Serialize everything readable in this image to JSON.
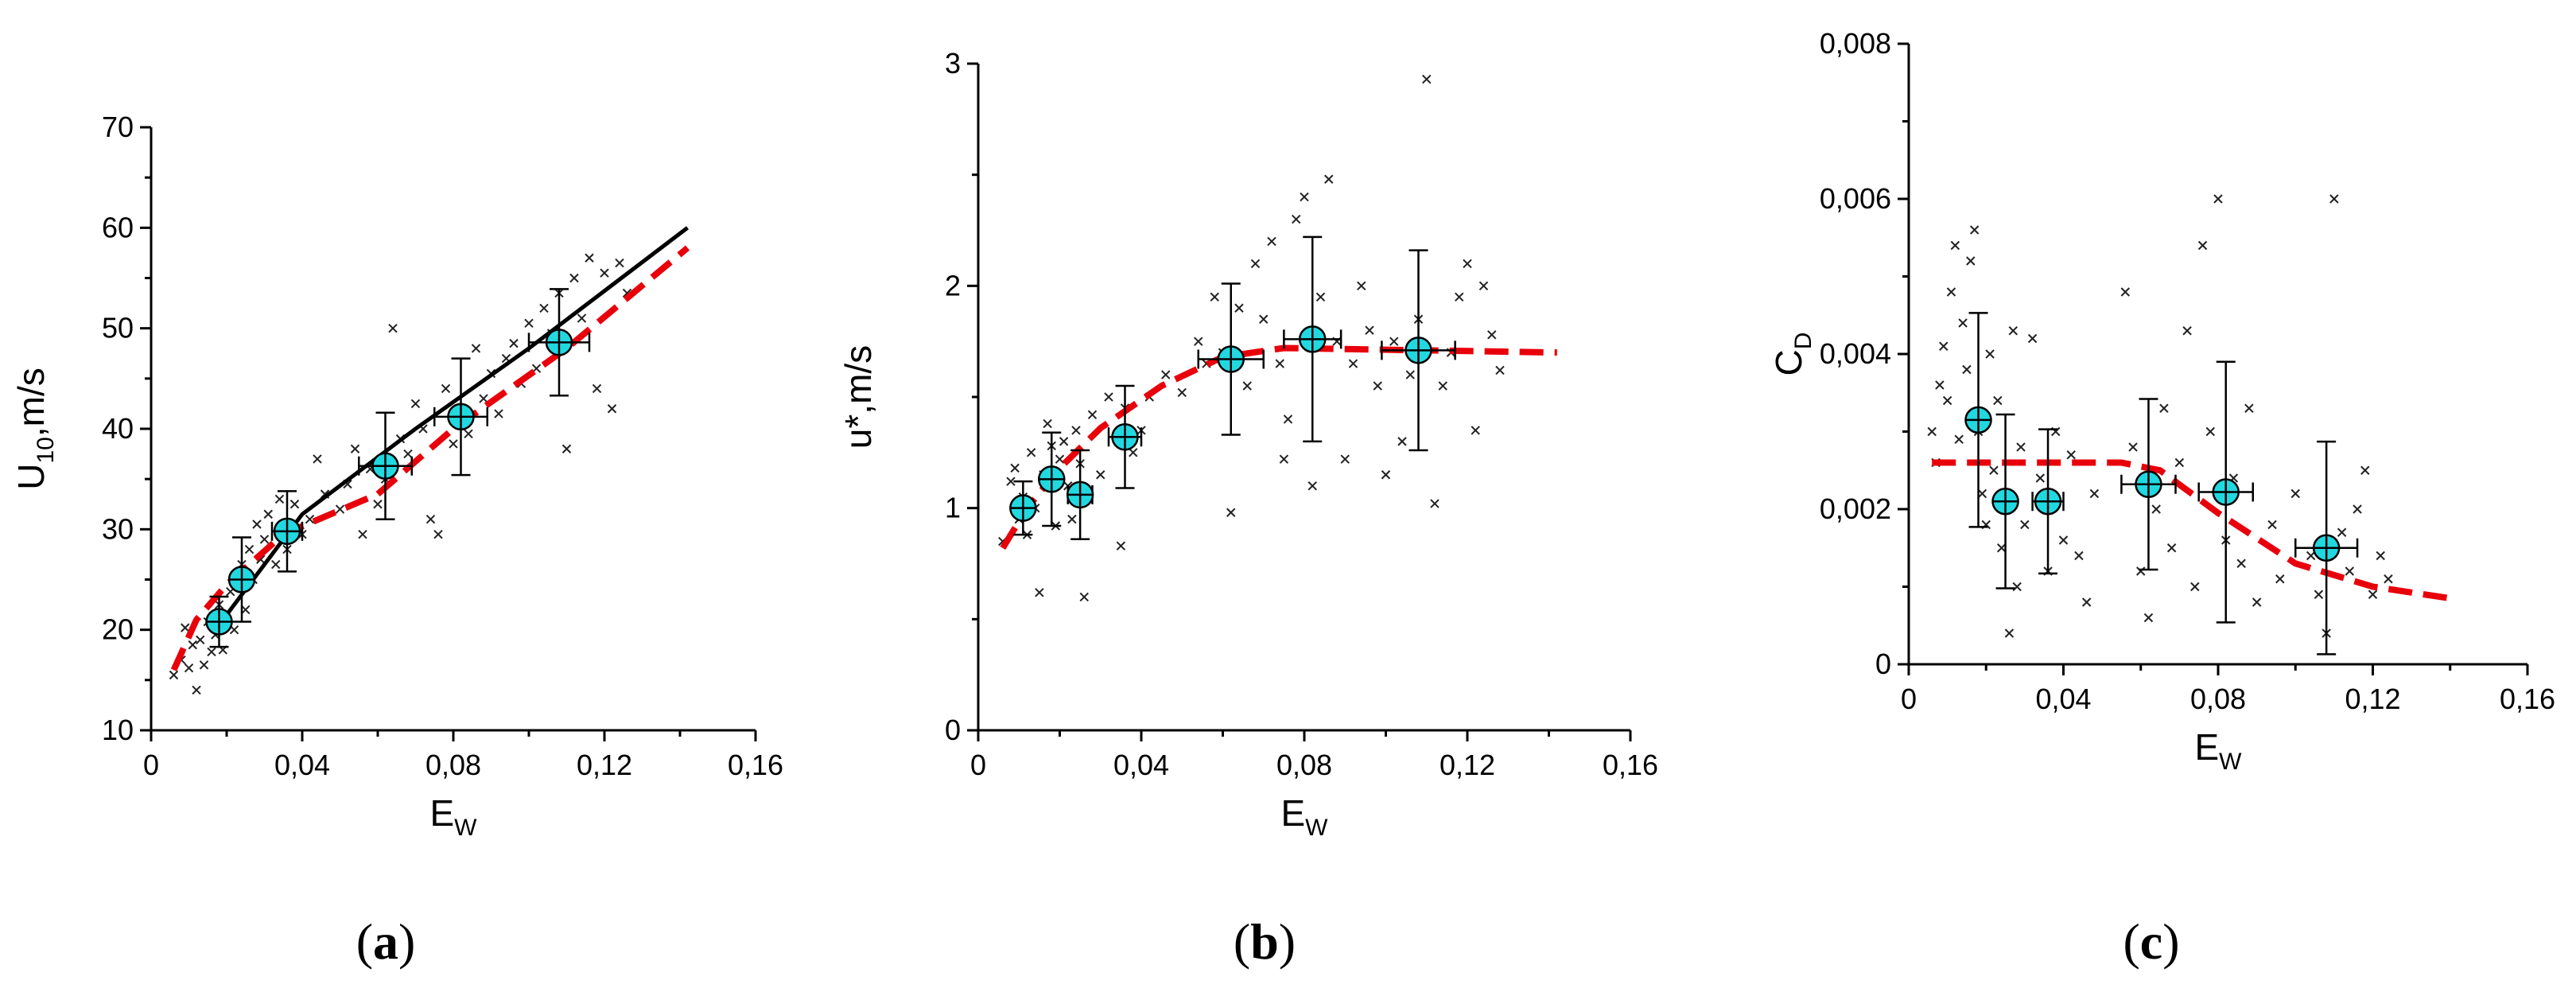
{
  "chart_data": [
    {
      "id": "a",
      "type": "scatter",
      "panel_label": "a",
      "xlabel": "E",
      "xlabel_sub": "W",
      "ylabel": "U",
      "ylabel_sub": "10",
      "ylabel_suffix": ",m/s",
      "xlim": [
        0,
        0.16
      ],
      "ylim": [
        10,
        70
      ],
      "xticks": [
        0,
        0.04,
        0.08,
        0.12,
        0.16
      ],
      "xtick_labels": [
        "0",
        "0,04",
        "0,08",
        "0,12",
        "0,16"
      ],
      "yticks": [
        10,
        20,
        30,
        40,
        50,
        60,
        70
      ],
      "ytick_labels": [
        "10",
        "20",
        "30",
        "40",
        "50",
        "60",
        "70"
      ],
      "scatter": [
        [
          0.006,
          15.5
        ],
        [
          0.008,
          17.0
        ],
        [
          0.009,
          20.2
        ],
        [
          0.01,
          16.2
        ],
        [
          0.011,
          18.5
        ],
        [
          0.012,
          14.0
        ],
        [
          0.013,
          19.0
        ],
        [
          0.014,
          16.5
        ],
        [
          0.015,
          20.8
        ],
        [
          0.016,
          17.8
        ],
        [
          0.017,
          19.5
        ],
        [
          0.018,
          22.5
        ],
        [
          0.019,
          18.0
        ],
        [
          0.02,
          21.5
        ],
        [
          0.021,
          23.8
        ],
        [
          0.022,
          20.0
        ],
        [
          0.023,
          24.5
        ],
        [
          0.024,
          26.5
        ],
        [
          0.025,
          22.0
        ],
        [
          0.026,
          28.0
        ],
        [
          0.027,
          25.0
        ],
        [
          0.028,
          30.5
        ],
        [
          0.029,
          27.0
        ],
        [
          0.03,
          29.0
        ],
        [
          0.031,
          31.5
        ],
        [
          0.033,
          26.5
        ],
        [
          0.034,
          33.0
        ],
        [
          0.035,
          30.0
        ],
        [
          0.036,
          28.0
        ],
        [
          0.038,
          32.5
        ],
        [
          0.04,
          29.5
        ],
        [
          0.042,
          31.0
        ],
        [
          0.044,
          37.0
        ],
        [
          0.046,
          33.5
        ],
        [
          0.05,
          32.0
        ],
        [
          0.052,
          34.5
        ],
        [
          0.054,
          38.0
        ],
        [
          0.056,
          29.5
        ],
        [
          0.058,
          36.0
        ],
        [
          0.06,
          32.5
        ],
        [
          0.062,
          35.0
        ],
        [
          0.064,
          50.0
        ],
        [
          0.066,
          39.0
        ],
        [
          0.068,
          37.5
        ],
        [
          0.07,
          42.5
        ],
        [
          0.072,
          40.0
        ],
        [
          0.074,
          31.0
        ],
        [
          0.076,
          29.5
        ],
        [
          0.078,
          44.0
        ],
        [
          0.08,
          38.5
        ],
        [
          0.082,
          42.0
        ],
        [
          0.084,
          39.5
        ],
        [
          0.086,
          48.0
        ],
        [
          0.088,
          43.0
        ],
        [
          0.09,
          45.5
        ],
        [
          0.092,
          41.5
        ],
        [
          0.094,
          47.0
        ],
        [
          0.096,
          48.5
        ],
        [
          0.098,
          44.5
        ],
        [
          0.1,
          50.5
        ],
        [
          0.102,
          46.0
        ],
        [
          0.104,
          52.0
        ],
        [
          0.106,
          49.5
        ],
        [
          0.108,
          53.5
        ],
        [
          0.11,
          38.0
        ],
        [
          0.112,
          55.0
        ],
        [
          0.114,
          51.0
        ],
        [
          0.116,
          57.0
        ],
        [
          0.118,
          44.0
        ],
        [
          0.12,
          55.5
        ],
        [
          0.122,
          42.0
        ],
        [
          0.124,
          56.5
        ],
        [
          0.126,
          53.5
        ]
      ],
      "means": [
        {
          "x": 0.018,
          "y": 20.8,
          "xerr": 0.002,
          "yerr": 2.5
        },
        {
          "x": 0.024,
          "y": 25.0,
          "xerr": 0.002,
          "yerr": 4.2
        },
        {
          "x": 0.036,
          "y": 29.8,
          "xerr": 0.004,
          "yerr": 4.0
        },
        {
          "x": 0.062,
          "y": 36.3,
          "xerr": 0.007,
          "yerr": 5.3
        },
        {
          "x": 0.082,
          "y": 41.2,
          "xerr": 0.007,
          "yerr": 5.8
        },
        {
          "x": 0.108,
          "y": 48.6,
          "xerr": 0.008,
          "yerr": 5.3
        }
      ],
      "fit_black": [
        [
          0.018,
          20.5
        ],
        [
          0.04,
          31.5
        ],
        [
          0.07,
          40.0
        ],
        [
          0.1,
          48.0
        ],
        [
          0.142,
          60.0
        ]
      ],
      "fit_red": [
        [
          0.006,
          16.0
        ],
        [
          0.012,
          21.0
        ],
        [
          0.02,
          24.5
        ],
        [
          0.035,
          29.5
        ],
        [
          0.06,
          33.5
        ],
        [
          0.08,
          40.0
        ],
        [
          0.11,
          48.0
        ],
        [
          0.142,
          58.0
        ]
      ]
    },
    {
      "id": "b",
      "type": "scatter",
      "panel_label": "b",
      "xlabel": "E",
      "xlabel_sub": "W",
      "ylabel": "u",
      "ylabel_sub": "",
      "ylabel_suffix": "*,m/s",
      "xlim": [
        0,
        0.16
      ],
      "ylim": [
        0,
        3
      ],
      "xticks": [
        0,
        0.04,
        0.08,
        0.12,
        0.16
      ],
      "xtick_labels": [
        "0",
        "0,04",
        "0,08",
        "0,12",
        "0,16"
      ],
      "yticks": [
        0,
        1,
        2,
        3
      ],
      "ytick_labels": [
        "0",
        "1",
        "2",
        "3"
      ],
      "scatter": [
        [
          0.006,
          0.85
        ],
        [
          0.008,
          1.12
        ],
        [
          0.009,
          1.18
        ],
        [
          0.01,
          0.95
        ],
        [
          0.011,
          1.05
        ],
        [
          0.012,
          0.88
        ],
        [
          0.013,
          1.25
        ],
        [
          0.014,
          1.0
        ],
        [
          0.015,
          0.62
        ],
        [
          0.016,
          1.15
        ],
        [
          0.017,
          1.38
        ],
        [
          0.018,
          1.28
        ],
        [
          0.019,
          0.92
        ],
        [
          0.02,
          1.22
        ],
        [
          0.021,
          1.3
        ],
        [
          0.022,
          1.1
        ],
        [
          0.023,
          0.95
        ],
        [
          0.024,
          1.35
        ],
        [
          0.025,
          1.2
        ],
        [
          0.026,
          0.6
        ],
        [
          0.027,
          1.05
        ],
        [
          0.028,
          1.42
        ],
        [
          0.03,
          1.15
        ],
        [
          0.032,
          1.5
        ],
        [
          0.034,
          1.32
        ],
        [
          0.035,
          0.83
        ],
        [
          0.036,
          1.45
        ],
        [
          0.038,
          1.25
        ],
        [
          0.04,
          1.35
        ],
        [
          0.042,
          1.5
        ],
        [
          0.046,
          1.6
        ],
        [
          0.05,
          1.52
        ],
        [
          0.054,
          1.75
        ],
        [
          0.056,
          1.65
        ],
        [
          0.058,
          1.95
        ],
        [
          0.06,
          1.7
        ],
        [
          0.062,
          0.98
        ],
        [
          0.064,
          1.9
        ],
        [
          0.066,
          1.55
        ],
        [
          0.068,
          2.1
        ],
        [
          0.07,
          1.85
        ],
        [
          0.072,
          2.2
        ],
        [
          0.074,
          1.65
        ],
        [
          0.075,
          1.22
        ],
        [
          0.076,
          1.4
        ],
        [
          0.078,
          2.3
        ],
        [
          0.08,
          2.4
        ],
        [
          0.082,
          1.1
        ],
        [
          0.084,
          1.95
        ],
        [
          0.086,
          2.48
        ],
        [
          0.088,
          1.75
        ],
        [
          0.09,
          1.22
        ],
        [
          0.092,
          1.65
        ],
        [
          0.094,
          2.0
        ],
        [
          0.096,
          1.8
        ],
        [
          0.098,
          1.55
        ],
        [
          0.1,
          1.15
        ],
        [
          0.102,
          1.75
        ],
        [
          0.104,
          1.3
        ],
        [
          0.106,
          1.6
        ],
        [
          0.108,
          1.85
        ],
        [
          0.11,
          2.93
        ],
        [
          0.112,
          1.02
        ],
        [
          0.114,
          1.55
        ],
        [
          0.116,
          1.7
        ],
        [
          0.118,
          1.95
        ],
        [
          0.12,
          2.1
        ],
        [
          0.122,
          1.35
        ],
        [
          0.124,
          2.0
        ],
        [
          0.126,
          1.78
        ],
        [
          0.128,
          1.62
        ]
      ],
      "means": [
        {
          "x": 0.011,
          "y": 1.0,
          "xerr": 0.002,
          "yerr": 0.12
        },
        {
          "x": 0.018,
          "y": 1.13,
          "xerr": 0.002,
          "yerr": 0.21
        },
        {
          "x": 0.025,
          "y": 1.06,
          "xerr": 0.003,
          "yerr": 0.2
        },
        {
          "x": 0.036,
          "y": 1.32,
          "xerr": 0.004,
          "yerr": 0.23
        },
        {
          "x": 0.062,
          "y": 1.67,
          "xerr": 0.008,
          "yerr": 0.34
        },
        {
          "x": 0.082,
          "y": 1.76,
          "xerr": 0.007,
          "yerr": 0.46
        },
        {
          "x": 0.108,
          "y": 1.71,
          "xerr": 0.009,
          "yerr": 0.45
        }
      ],
      "fit_red": [
        [
          0.006,
          0.82
        ],
        [
          0.012,
          1.0
        ],
        [
          0.02,
          1.18
        ],
        [
          0.03,
          1.36
        ],
        [
          0.045,
          1.55
        ],
        [
          0.06,
          1.68
        ],
        [
          0.075,
          1.72
        ],
        [
          0.142,
          1.7
        ]
      ]
    },
    {
      "id": "c",
      "type": "scatter",
      "panel_label": "c",
      "xlabel": "E",
      "xlabel_sub": "W",
      "ylabel": "C",
      "ylabel_sub": "D",
      "ylabel_suffix": "",
      "xlim": [
        0,
        0.16
      ],
      "ylim": [
        0,
        0.008
      ],
      "xticks": [
        0,
        0.04,
        0.08,
        0.12,
        0.16
      ],
      "xtick_labels": [
        "0",
        "0,04",
        "0,08",
        "0,12",
        "0,16"
      ],
      "yticks": [
        0,
        0.002,
        0.004,
        0.006,
        0.008
      ],
      "ytick_labels": [
        "0",
        "0,002",
        "0,004",
        "0,006",
        "0,008"
      ],
      "scatter": [
        [
          0.006,
          0.003
        ],
        [
          0.007,
          0.0026
        ],
        [
          0.008,
          0.0036
        ],
        [
          0.009,
          0.0041
        ],
        [
          0.01,
          0.0034
        ],
        [
          0.011,
          0.0048
        ],
        [
          0.012,
          0.0054
        ],
        [
          0.013,
          0.0029
        ],
        [
          0.014,
          0.0044
        ],
        [
          0.015,
          0.0038
        ],
        [
          0.016,
          0.0052
        ],
        [
          0.017,
          0.0056
        ],
        [
          0.018,
          0.003
        ],
        [
          0.019,
          0.0022
        ],
        [
          0.02,
          0.0018
        ],
        [
          0.021,
          0.004
        ],
        [
          0.022,
          0.0025
        ],
        [
          0.023,
          0.0034
        ],
        [
          0.024,
          0.0015
        ],
        [
          0.025,
          0.002
        ],
        [
          0.026,
          0.0004
        ],
        [
          0.027,
          0.0043
        ],
        [
          0.028,
          0.001
        ],
        [
          0.029,
          0.0028
        ],
        [
          0.03,
          0.0018
        ],
        [
          0.032,
          0.0042
        ],
        [
          0.034,
          0.0024
        ],
        [
          0.036,
          0.0012
        ],
        [
          0.038,
          0.003
        ],
        [
          0.04,
          0.0016
        ],
        [
          0.042,
          0.0027
        ],
        [
          0.044,
          0.0014
        ],
        [
          0.046,
          0.0008
        ],
        [
          0.048,
          0.0022
        ],
        [
          0.056,
          0.0048
        ],
        [
          0.058,
          0.0028
        ],
        [
          0.06,
          0.0012
        ],
        [
          0.062,
          0.0006
        ],
        [
          0.064,
          0.002
        ],
        [
          0.066,
          0.0033
        ],
        [
          0.068,
          0.0015
        ],
        [
          0.07,
          0.0026
        ],
        [
          0.072,
          0.0043
        ],
        [
          0.074,
          0.001
        ],
        [
          0.076,
          0.0054
        ],
        [
          0.078,
          0.003
        ],
        [
          0.08,
          0.006
        ],
        [
          0.082,
          0.0016
        ],
        [
          0.084,
          0.0024
        ],
        [
          0.086,
          0.0013
        ],
        [
          0.088,
          0.0033
        ],
        [
          0.09,
          0.0008
        ],
        [
          0.094,
          0.0018
        ],
        [
          0.096,
          0.0011
        ],
        [
          0.1,
          0.0022
        ],
        [
          0.104,
          0.0014
        ],
        [
          0.106,
          0.0009
        ],
        [
          0.108,
          0.0004
        ],
        [
          0.11,
          0.006
        ],
        [
          0.112,
          0.0017
        ],
        [
          0.114,
          0.0012
        ],
        [
          0.116,
          0.002
        ],
        [
          0.118,
          0.0025
        ],
        [
          0.12,
          0.0009
        ],
        [
          0.122,
          0.0014
        ],
        [
          0.124,
          0.0011
        ]
      ],
      "means": [
        {
          "x": 0.018,
          "y": 0.00315,
          "xerr": 0.002,
          "yerr": 0.00138
        },
        {
          "x": 0.025,
          "y": 0.0021,
          "xerr": 0.002,
          "yerr": 0.00112
        },
        {
          "x": 0.036,
          "y": 0.0021,
          "xerr": 0.004,
          "yerr": 0.00093
        },
        {
          "x": 0.062,
          "y": 0.00232,
          "xerr": 0.007,
          "yerr": 0.0011
        },
        {
          "x": 0.082,
          "y": 0.00222,
          "xerr": 0.007,
          "yerr": 0.00168
        },
        {
          "x": 0.108,
          "y": 0.0015,
          "xerr": 0.008,
          "yerr": 0.00137
        }
      ],
      "fit_red": [
        [
          0.006,
          0.0026
        ],
        [
          0.03,
          0.0026
        ],
        [
          0.055,
          0.0026
        ],
        [
          0.065,
          0.0025
        ],
        [
          0.08,
          0.00195
        ],
        [
          0.1,
          0.0013
        ],
        [
          0.12,
          0.001
        ],
        [
          0.14,
          0.00085
        ]
      ]
    }
  ]
}
